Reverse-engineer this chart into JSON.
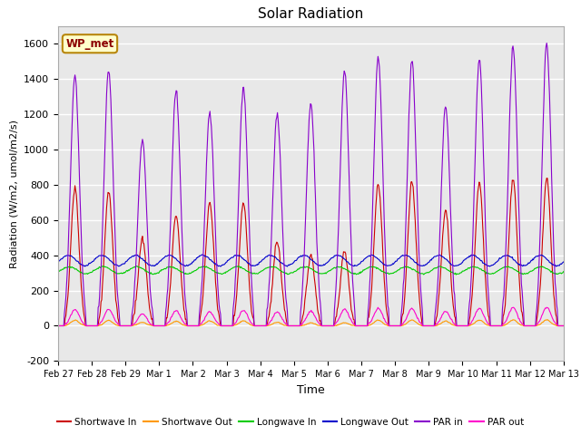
{
  "title": "Solar Radiation",
  "ylabel": "Radiation (W/m2, umol/m2/s)",
  "xlabel": "Time",
  "ylim": [
    -200,
    1700
  ],
  "yticks": [
    -200,
    0,
    200,
    400,
    600,
    800,
    1000,
    1200,
    1400,
    1600
  ],
  "x_labels": [
    "Feb 27",
    "Feb 28",
    "Feb 29",
    "Mar 1",
    "Mar 2",
    "Mar 3",
    "Mar 4",
    "Mar 5",
    "Mar 6",
    "Mar 7",
    "Mar 8",
    "Mar 9",
    "Mar 10",
    "Mar 11",
    "Mar 12",
    "Mar 13"
  ],
  "colors": {
    "shortwave_in": "#cc0000",
    "shortwave_out": "#ff9900",
    "longwave_in": "#00cc00",
    "longwave_out": "#0000cc",
    "par_in": "#8800cc",
    "par_out": "#ff00cc"
  },
  "legend_labels": [
    "Shortwave In",
    "Shortwave Out",
    "Longwave In",
    "Longwave Out",
    "PAR in",
    "PAR out"
  ],
  "station_label": "WP_met",
  "plot_bg_color": "#e8e8e8"
}
